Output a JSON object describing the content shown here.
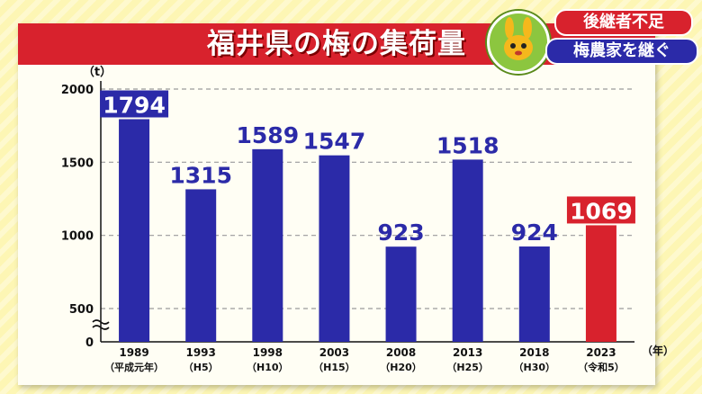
{
  "header": {
    "title": "福井県の梅の集荷量"
  },
  "badge": {
    "line1": "後継者不足",
    "line2": "梅農家を継ぐ"
  },
  "colors": {
    "bar_default": "#2b2aa8",
    "bar_highlight": "#d8222d",
    "title_bar": "#d8222d",
    "background": "#fdf6b4"
  },
  "chart_data": {
    "type": "bar",
    "title": "福井県の梅の集荷量",
    "y_unit_label": "（t）",
    "x_unit_label": "（年）",
    "categories": [
      "1989",
      "1993",
      "1998",
      "2003",
      "2008",
      "2013",
      "2018",
      "2023"
    ],
    "sub_labels": [
      "（平成元年）",
      "（H5）",
      "（H10）",
      "（H15）",
      "（H20）",
      "（H25）",
      "（H30）",
      "（令和5）"
    ],
    "values": [
      1794,
      1315,
      1589,
      1547,
      923,
      1518,
      924,
      1069
    ],
    "highlight_index": 7,
    "ylim": [
      0,
      2000
    ],
    "y_ticks": [
      0,
      500,
      1000,
      1500,
      2000
    ],
    "axis_break": true,
    "grid": true
  }
}
